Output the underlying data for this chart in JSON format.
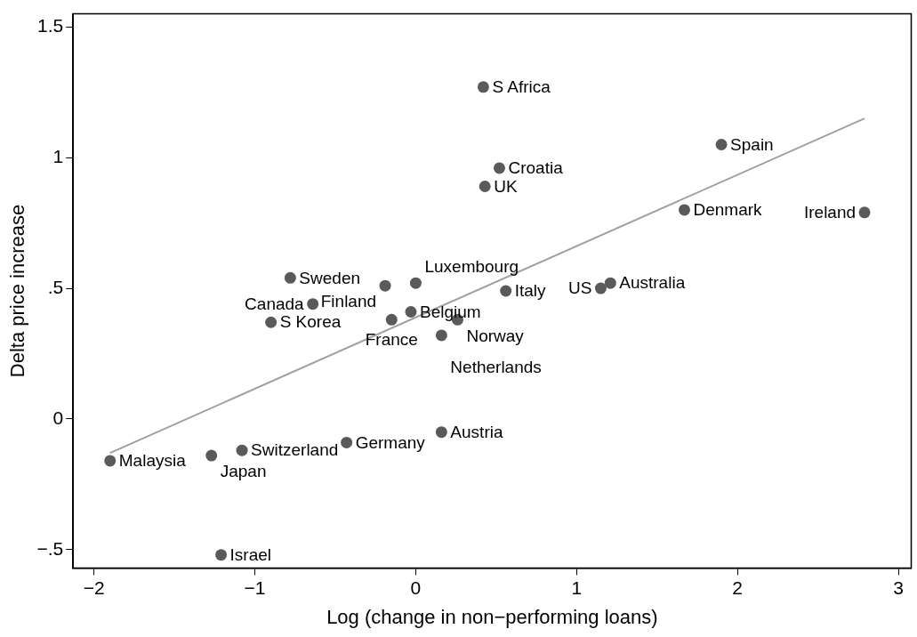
{
  "chart_data": {
    "type": "scatter",
    "xlabel": "Log (change in non−performing loans)",
    "ylabel": "Delta price increase",
    "xlim": [
      -2.13,
      3.08
    ],
    "ylim": [
      -0.57,
      1.55
    ],
    "xticks": [
      {
        "value": -2,
        "label": "−2"
      },
      {
        "value": -1,
        "label": "−1"
      },
      0,
      1,
      2,
      3
    ],
    "yticks": [
      {
        "value": -0.5,
        "label": "−.5"
      },
      0,
      {
        "value": 0.5,
        "label": ".5"
      },
      1,
      1.5
    ],
    "grid": false,
    "legend": false,
    "marker": "circle",
    "series": [
      {
        "color": "#5a5a5a",
        "x": [
          0.42,
          1.9,
          0.52,
          0.43,
          1.67,
          2.79,
          -0.78,
          -0.19,
          0.0,
          0.56,
          -0.64,
          -0.03,
          -0.9,
          -0.15,
          0.26,
          0.16,
          1.21,
          1.15,
          -1.9,
          -1.27,
          -1.08,
          -0.43,
          0.16,
          -1.21
        ],
        "values": [
          1.27,
          1.05,
          0.96,
          0.89,
          0.8,
          0.79,
          0.54,
          0.51,
          0.52,
          0.49,
          0.44,
          0.41,
          0.37,
          0.38,
          0.38,
          0.32,
          0.52,
          0.5,
          -0.16,
          -0.14,
          -0.12,
          -0.09,
          -0.05,
          -0.52
        ],
        "value_labels": [
          "S Africa",
          "Spain",
          "Croatia",
          "UK",
          "Denmark",
          "Ireland",
          "Sweden",
          "Finland",
          "Luxembourg",
          "Italy",
          "Canada",
          "Belgium",
          "S Korea",
          "France",
          "Norway",
          "Netherlands",
          "Australia",
          "US",
          "Malaysia",
          "Japan",
          "Switzerland",
          "Germany",
          "Austria",
          "Israel"
        ]
      },
      {
        "type": "line",
        "color": "#a0a0a0",
        "x": [
          -1.9,
          2.79
        ],
        "values": [
          -0.13,
          1.15
        ],
        "line_style": "solid",
        "marker": "none"
      }
    ]
  }
}
